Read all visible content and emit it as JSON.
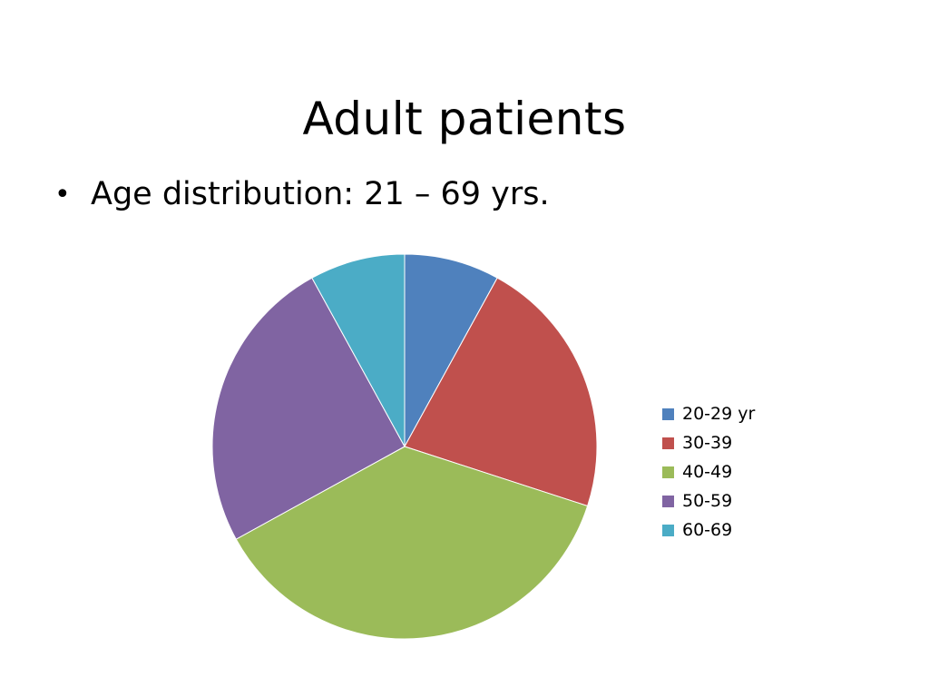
{
  "slide": {
    "title": "Adult patients",
    "bullet_symbol": "•",
    "bullet_text": "Age distribution: 21 – 69 yrs."
  },
  "chart_data": {
    "type": "pie",
    "title": "",
    "start_angle_deg": 0,
    "direction": "clockwise",
    "categories": [
      "20-29 yr",
      "30-39",
      "40-49",
      "50-59",
      "60-69"
    ],
    "values": [
      8,
      22,
      37,
      25,
      8
    ],
    "colors": [
      "#4F81BD",
      "#C0504D",
      "#9BBB59",
      "#8064A2",
      "#4BACC6"
    ],
    "legend_position": "right",
    "slice_border_color": "#FFFFFF"
  }
}
